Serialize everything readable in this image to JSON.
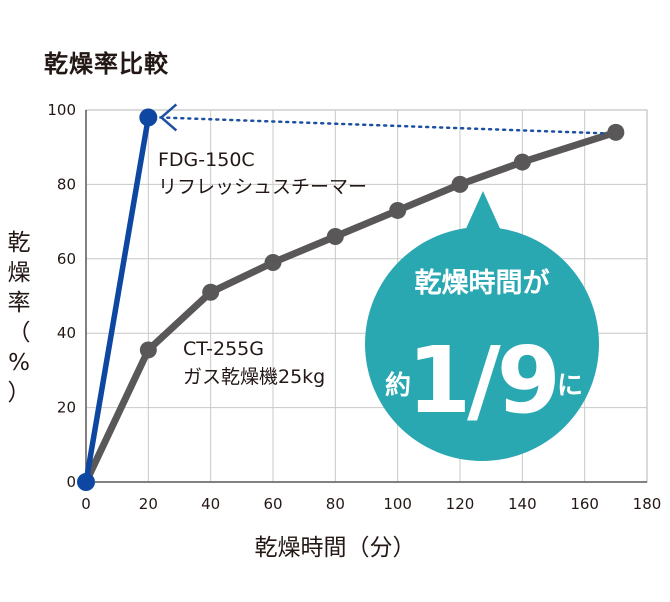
{
  "chart_data": {
    "type": "line",
    "title": "乾燥率比較",
    "xlabel": "乾燥時間（分）",
    "ylabel_chars": [
      "乾",
      "燥",
      "率",
      "（",
      "%",
      "）"
    ],
    "xlim": [
      0,
      180
    ],
    "ylim": [
      0,
      100
    ],
    "x_ticks": [
      0,
      20,
      40,
      60,
      80,
      100,
      120,
      140,
      160,
      180
    ],
    "y_ticks": [
      0,
      20,
      40,
      60,
      80,
      100
    ],
    "grid": true,
    "series": [
      {
        "name_lines": [
          "CT-255G",
          "ガス乾燥機25kg"
        ],
        "color": "#595757",
        "points": [
          [
            0,
            0
          ],
          [
            20,
            35.5
          ],
          [
            40,
            51
          ],
          [
            60,
            59
          ],
          [
            80,
            66
          ],
          [
            100,
            73
          ],
          [
            120,
            80
          ],
          [
            140,
            86
          ],
          [
            170,
            94
          ]
        ]
      },
      {
        "name_lines": [
          "FDG-150C",
          "リフレッシュスチーマー"
        ],
        "color": "#0d47a1",
        "points": [
          [
            0,
            0
          ],
          [
            20,
            98
          ]
        ]
      }
    ],
    "comparison_line_color": "#1e50a2",
    "bubble": {
      "color": "#2aa8b2",
      "line1": "乾燥時間が",
      "prefix": "約",
      "fraction": "1/9",
      "suffix": "に"
    }
  }
}
